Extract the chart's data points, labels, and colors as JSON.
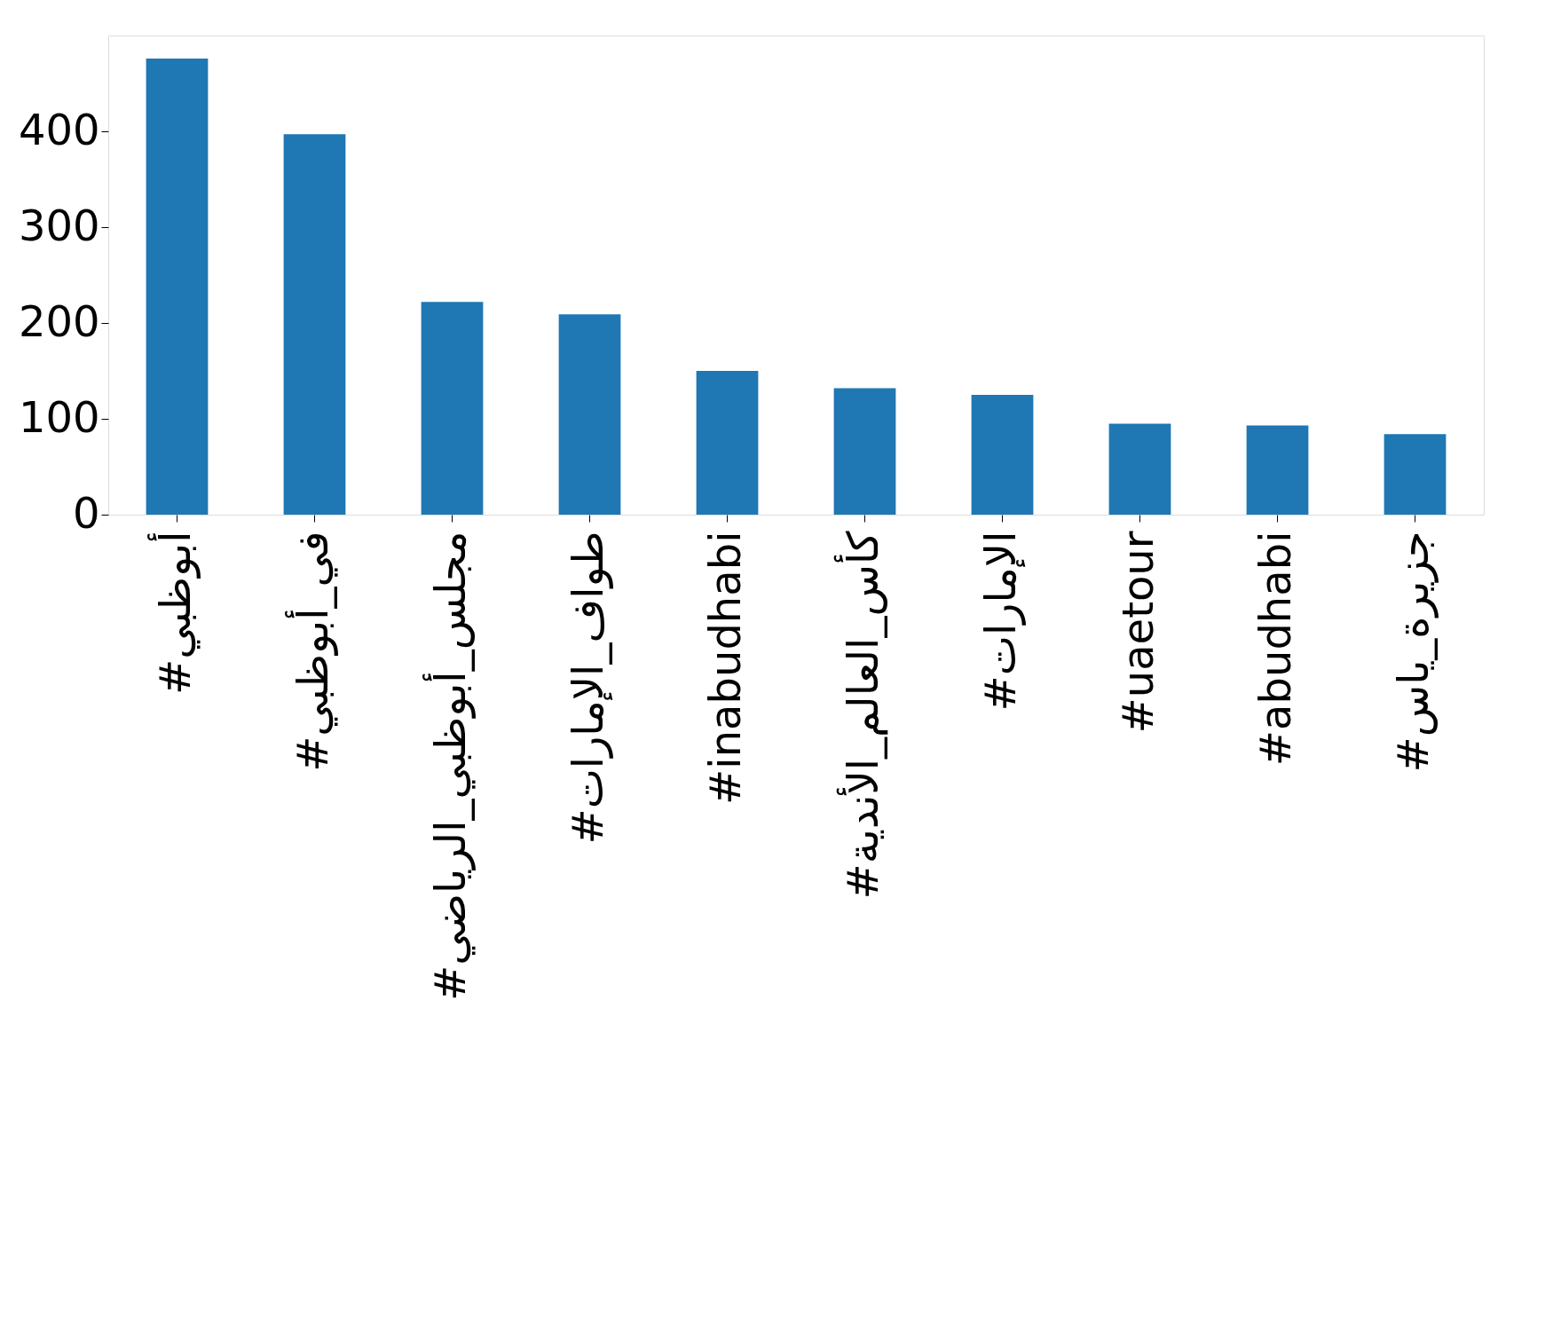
{
  "chart_data": {
    "type": "bar",
    "categories": [
      "#أبوظبي",
      "#في_أبوظبي",
      "#مجلس_أبوظبي_الرياضي",
      "#طواف_الإمارات",
      "#inabudhabi",
      "#كأس_العالم_الأندية",
      "#الإمارات",
      "#uaetour",
      "#abudhabi",
      "#جزيرة_ياس"
    ],
    "values": [
      476,
      397,
      222,
      209,
      150,
      132,
      125,
      95,
      93,
      84
    ],
    "color": "#1f77b4",
    "ylim": [
      0,
      500
    ],
    "yticks": [
      0,
      100,
      200,
      300,
      400
    ],
    "grid": false
  }
}
